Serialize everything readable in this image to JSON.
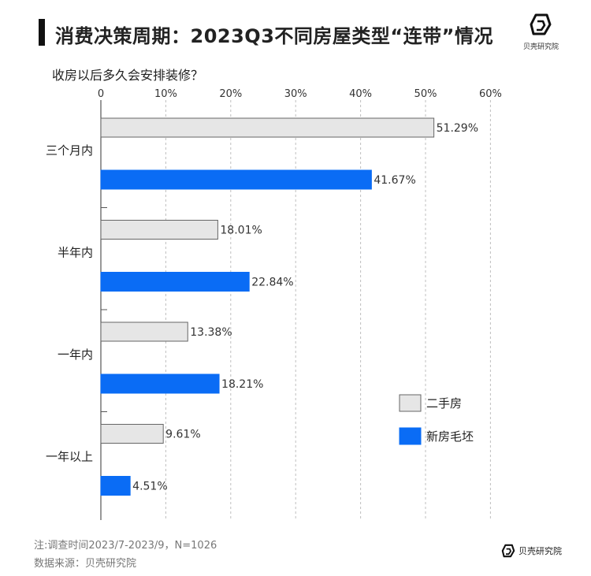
{
  "header": {
    "title": "消费决策周期：2023Q3不同房屋类型“连带”情况",
    "brand": "贝壳研究院"
  },
  "question": "收房以后多久会安排装修？",
  "chart_data": {
    "type": "bar",
    "orientation": "horizontal",
    "title": "消费决策周期：2023Q3不同房屋类型“连带”情况",
    "subtitle": "收房以后多久会安排装修？",
    "categories": [
      "三个月内",
      "半年内",
      "一年内",
      "一年以上"
    ],
    "series": [
      {
        "name": "二手房",
        "color": "#e6e6e6",
        "stroke": "#666666",
        "values": [
          51.29,
          18.01,
          13.38,
          9.61
        ]
      },
      {
        "name": "新房毛坯",
        "color": "#0a6cf5",
        "stroke": "#0a6cf5",
        "values": [
          41.67,
          22.84,
          18.21,
          4.51
        ]
      }
    ],
    "xlim": [
      0,
      60
    ],
    "xticks": [
      0,
      10,
      20,
      30,
      40,
      50,
      60
    ],
    "xtick_labels": [
      "0",
      "10%",
      "20%",
      "30%",
      "40%",
      "50%",
      "60%"
    ],
    "x_axis_position": "top",
    "grid": "vertical dashed",
    "legend_position": "bottom-right",
    "value_suffix": "%"
  },
  "footnotes": {
    "note": "注:调查时间2023/7-2023/9，N=1026",
    "source": "数据来源：贝壳研究院"
  }
}
